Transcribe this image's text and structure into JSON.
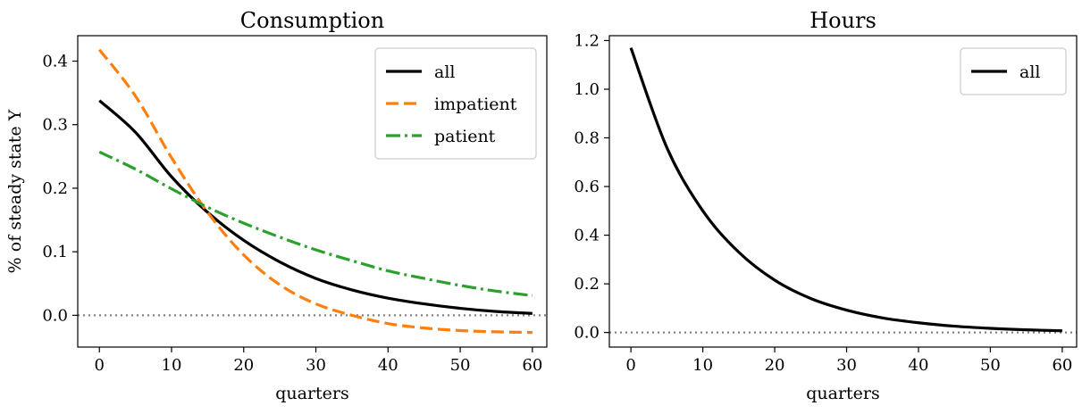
{
  "chart_data": [
    {
      "type": "line",
      "title": "Consumption",
      "xlabel": "quarters",
      "ylabel": "% of steady state Y",
      "xlim": [
        -3,
        62
      ],
      "ylim": [
        -0.05,
        0.44
      ],
      "xticks": [
        0,
        10,
        20,
        30,
        40,
        50,
        60
      ],
      "yticks": [
        0.0,
        0.1,
        0.2,
        0.3,
        0.4
      ],
      "ytick_labels": [
        "0.0",
        "0.1",
        "0.2",
        "0.3",
        "0.4"
      ],
      "xtick_labels": [
        "0",
        "10",
        "20",
        "30",
        "40",
        "50",
        "60"
      ],
      "grid": false,
      "legend": "top-right",
      "zero_line": {
        "y": 0,
        "style": "dotted",
        "color": "#808080"
      },
      "x": [
        0,
        5,
        10,
        15,
        20,
        25,
        30,
        35,
        40,
        45,
        50,
        55,
        60
      ],
      "series": [
        {
          "name": "all",
          "color": "#000000",
          "dash": "solid",
          "values": [
            0.338,
            0.288,
            0.218,
            0.162,
            0.118,
            0.084,
            0.058,
            0.04,
            0.027,
            0.018,
            0.011,
            0.006,
            0.003
          ]
        },
        {
          "name": "impatient",
          "color": "#ff7f0e",
          "dash": "dashed",
          "values": [
            0.418,
            0.345,
            0.248,
            0.162,
            0.095,
            0.048,
            0.018,
            0.0,
            -0.013,
            -0.02,
            -0.024,
            -0.026,
            -0.027
          ]
        },
        {
          "name": "patient",
          "color": "#2ca02c",
          "dash": "dashdot",
          "values": [
            0.257,
            0.23,
            0.199,
            0.17,
            0.145,
            0.123,
            0.103,
            0.086,
            0.07,
            0.058,
            0.047,
            0.038,
            0.031
          ]
        }
      ]
    },
    {
      "type": "line",
      "title": "Hours",
      "xlabel": "quarters",
      "ylabel": "",
      "xlim": [
        -3,
        62
      ],
      "ylim": [
        -0.06,
        1.22
      ],
      "xticks": [
        0,
        10,
        20,
        30,
        40,
        50,
        60
      ],
      "yticks": [
        0.0,
        0.2,
        0.4,
        0.6,
        0.8,
        1.0,
        1.2
      ],
      "ytick_labels": [
        "0.0",
        "0.2",
        "0.4",
        "0.6",
        "0.8",
        "1.0",
        "1.2"
      ],
      "xtick_labels": [
        "0",
        "10",
        "20",
        "30",
        "40",
        "50",
        "60"
      ],
      "grid": false,
      "legend": "top-right",
      "zero_line": {
        "y": 0,
        "style": "dotted",
        "color": "#808080"
      },
      "x": [
        0,
        5,
        10,
        15,
        20,
        25,
        30,
        35,
        40,
        45,
        50,
        55,
        60
      ],
      "series": [
        {
          "name": "all",
          "color": "#000000",
          "dash": "solid",
          "values": [
            1.17,
            0.76,
            0.5,
            0.33,
            0.215,
            0.14,
            0.092,
            0.06,
            0.04,
            0.026,
            0.017,
            0.011,
            0.007
          ]
        }
      ]
    }
  ]
}
